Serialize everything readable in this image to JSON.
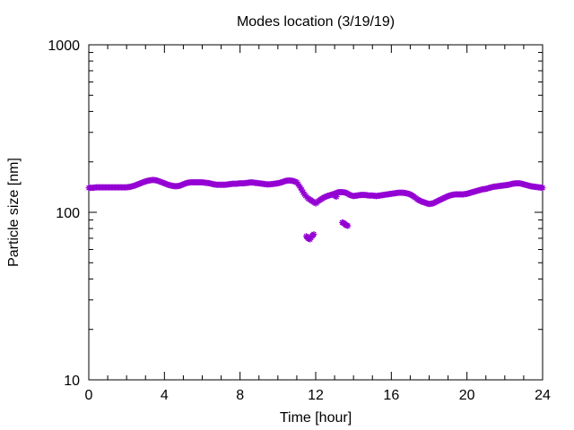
{
  "chart_data": {
    "type": "scatter",
    "title": "Modes location (3/19/19)",
    "xlabel": "Time [hour]",
    "ylabel": "Particle size [nm]",
    "xlim": [
      0,
      24
    ],
    "ylim": [
      10,
      1000
    ],
    "yscale": "log",
    "grid": false,
    "legend": "none",
    "x_ticks": [
      0,
      4,
      8,
      12,
      16,
      20,
      24
    ],
    "y_ticks": [
      10,
      100,
      1000
    ],
    "x_tick_labels": [
      "0",
      "4",
      "8",
      "12",
      "16",
      "20",
      "24"
    ],
    "y_tick_labels": [
      "10",
      "100",
      "1000"
    ],
    "marker_color": "#9400d3",
    "series": [
      {
        "points": [
          [
            0.0,
            140
          ],
          [
            0.2,
            140
          ],
          [
            0.4,
            141
          ],
          [
            0.6,
            141
          ],
          [
            0.8,
            141
          ],
          [
            1.0,
            141
          ],
          [
            1.2,
            141
          ],
          [
            1.4,
            141
          ],
          [
            1.6,
            141
          ],
          [
            1.8,
            141
          ],
          [
            2.0,
            141
          ],
          [
            2.2,
            142
          ],
          [
            2.4,
            144
          ],
          [
            2.6,
            147
          ],
          [
            2.8,
            150
          ],
          [
            3.0,
            153
          ],
          [
            3.2,
            155
          ],
          [
            3.4,
            156
          ],
          [
            3.6,
            155
          ],
          [
            3.8,
            152
          ],
          [
            4.0,
            149
          ],
          [
            4.2,
            146
          ],
          [
            4.4,
            144
          ],
          [
            4.6,
            143
          ],
          [
            4.8,
            144
          ],
          [
            5.0,
            147
          ],
          [
            5.2,
            150
          ],
          [
            5.4,
            151
          ],
          [
            5.6,
            151
          ],
          [
            5.8,
            151
          ],
          [
            6.0,
            151
          ],
          [
            6.2,
            150
          ],
          [
            6.4,
            149
          ],
          [
            6.6,
            147
          ],
          [
            6.8,
            146
          ],
          [
            7.0,
            146
          ],
          [
            7.2,
            146
          ],
          [
            7.4,
            147
          ],
          [
            7.6,
            148
          ],
          [
            7.8,
            148
          ],
          [
            8.0,
            149
          ],
          [
            8.2,
            149
          ],
          [
            8.4,
            150
          ],
          [
            8.6,
            151
          ],
          [
            8.8,
            150
          ],
          [
            9.0,
            149
          ],
          [
            9.2,
            148
          ],
          [
            9.4,
            147
          ],
          [
            9.6,
            147
          ],
          [
            9.8,
            148
          ],
          [
            10.0,
            149
          ],
          [
            10.2,
            151
          ],
          [
            10.4,
            154
          ],
          [
            10.6,
            155
          ],
          [
            10.8,
            154
          ],
          [
            11.0,
            151
          ],
          [
            11.2,
            140
          ],
          [
            11.4,
            128
          ],
          [
            11.6,
            121
          ],
          [
            11.8,
            117
          ],
          [
            12.0,
            113
          ],
          [
            12.2,
            118
          ],
          [
            12.4,
            122
          ],
          [
            12.6,
            125
          ],
          [
            12.8,
            127
          ],
          [
            13.0,
            129
          ],
          [
            13.2,
            132
          ],
          [
            13.4,
            132
          ],
          [
            13.6,
            131
          ],
          [
            13.8,
            127
          ],
          [
            14.0,
            125
          ],
          [
            14.2,
            126
          ],
          [
            14.4,
            127
          ],
          [
            14.6,
            127
          ],
          [
            14.8,
            126
          ],
          [
            15.0,
            126
          ],
          [
            15.2,
            125
          ],
          [
            15.4,
            126
          ],
          [
            15.6,
            127
          ],
          [
            15.8,
            128
          ],
          [
            16.0,
            129
          ],
          [
            16.2,
            130
          ],
          [
            16.4,
            131
          ],
          [
            16.6,
            131
          ],
          [
            16.8,
            130
          ],
          [
            17.0,
            128
          ],
          [
            17.2,
            124
          ],
          [
            17.4,
            119
          ],
          [
            17.6,
            116
          ],
          [
            17.8,
            114
          ],
          [
            18.0,
            112
          ],
          [
            18.2,
            113
          ],
          [
            18.4,
            116
          ],
          [
            18.6,
            119
          ],
          [
            18.8,
            122
          ],
          [
            19.0,
            125
          ],
          [
            19.2,
            127
          ],
          [
            19.4,
            128
          ],
          [
            19.6,
            128
          ],
          [
            19.8,
            128
          ],
          [
            20.0,
            129
          ],
          [
            20.2,
            131
          ],
          [
            20.4,
            133
          ],
          [
            20.6,
            135
          ],
          [
            20.8,
            137
          ],
          [
            21.0,
            138
          ],
          [
            21.2,
            140
          ],
          [
            21.4,
            142
          ],
          [
            21.6,
            143
          ],
          [
            21.8,
            144
          ],
          [
            22.0,
            145
          ],
          [
            22.2,
            146
          ],
          [
            22.4,
            148
          ],
          [
            22.6,
            149
          ],
          [
            22.8,
            149
          ],
          [
            23.0,
            147
          ],
          [
            23.2,
            145
          ],
          [
            23.4,
            143
          ],
          [
            23.6,
            142
          ],
          [
            23.8,
            141
          ],
          [
            24.0,
            140
          ]
        ]
      },
      {
        "points": [
          [
            11.5,
            72
          ],
          [
            11.6,
            70
          ],
          [
            11.7,
            69
          ],
          [
            11.8,
            72
          ],
          [
            11.9,
            74
          ]
        ]
      },
      {
        "points": [
          [
            13.0,
            126
          ],
          [
            13.1,
            124
          ]
        ]
      },
      {
        "points": [
          [
            13.4,
            87
          ],
          [
            13.5,
            86
          ],
          [
            13.6,
            84
          ],
          [
            13.7,
            83
          ]
        ]
      }
    ]
  }
}
